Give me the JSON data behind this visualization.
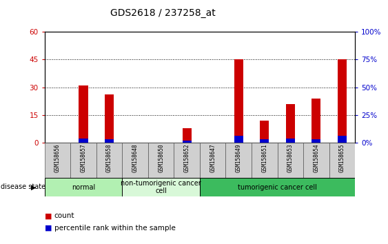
{
  "title": "GDS2618 / 237258_at",
  "samples": [
    "GSM158656",
    "GSM158657",
    "GSM158658",
    "GSM158648",
    "GSM158650",
    "GSM158652",
    "GSM158647",
    "GSM158649",
    "GSM158651",
    "GSM158653",
    "GSM158654",
    "GSM158655"
  ],
  "count_values": [
    0,
    31,
    26,
    0,
    0,
    8,
    0,
    45,
    12,
    21,
    24,
    45
  ],
  "percentile_values": [
    0,
    4,
    3,
    0,
    0,
    2,
    0,
    6,
    3,
    4,
    3,
    6
  ],
  "disease_groups": [
    {
      "label": "normal",
      "start": 0,
      "end": 3,
      "color": "#b2f0b2"
    },
    {
      "label": "non-tumorigenic cancer\ncell",
      "start": 3,
      "end": 6,
      "color": "#d8f8d8"
    },
    {
      "label": "tumorigenic cancer cell",
      "start": 6,
      "end": 12,
      "color": "#3cbb5e"
    }
  ],
  "ylim_left": [
    0,
    60
  ],
  "ylim_right": [
    0,
    100
  ],
  "yticks_left": [
    0,
    15,
    30,
    45,
    60
  ],
  "yticks_right": [
    0,
    25,
    50,
    75,
    100
  ],
  "ytick_labels_left": [
    "0",
    "15",
    "30",
    "45",
    "60"
  ],
  "ytick_labels_right": [
    "0%",
    "25%",
    "50%",
    "75%",
    "100%"
  ],
  "bar_color_count": "#cc0000",
  "bar_color_percentile": "#0000cc",
  "bar_width": 0.35,
  "legend_count_label": "count",
  "legend_percentile_label": "percentile rank within the sample",
  "disease_state_label": "disease state",
  "background_color": "#ffffff",
  "plot_bg_color": "#ffffff",
  "tick_label_color_left": "#cc0000",
  "tick_label_color_right": "#0000cc",
  "title_fontsize": 10,
  "tick_fontsize": 7.5,
  "sample_fontsize": 5.5,
  "group_fontsize": 7,
  "legend_fontsize": 7.5
}
